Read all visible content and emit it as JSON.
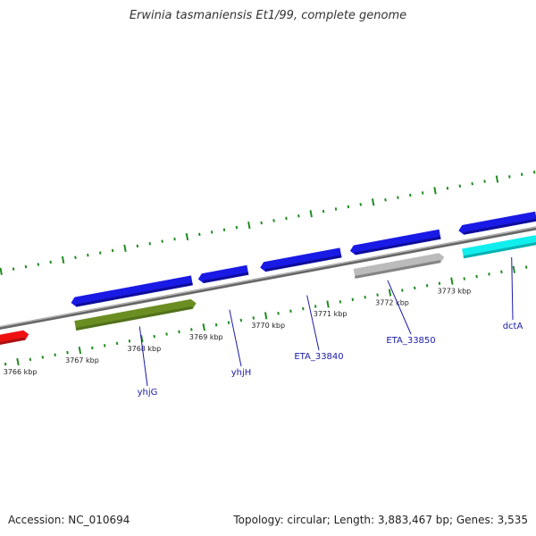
{
  "title": "Erwinia tasmaniensis Et1/99, complete genome",
  "footer": {
    "accession": "Accession: NC_010694",
    "summary": "Topology: circular; Length: 3,883,467 bp; Genes: 3,535"
  },
  "colors": {
    "backbone": "#888888",
    "tick": "#228b22",
    "gene_blue": "#1a1ae6",
    "gene_red": "#ee1111",
    "gene_olive": "#6b8e23",
    "gene_grey": "#bbbbbb",
    "gene_cyan": "#11eeee",
    "label": "#1a1aaa"
  },
  "scale": {
    "ticks": [
      {
        "kbp": 3766,
        "label": "3766 kbp"
      },
      {
        "kbp": 3767,
        "label": "3767 kbp"
      },
      {
        "kbp": 3768,
        "label": "3768 kbp"
      },
      {
        "kbp": 3769,
        "label": "3769 kbp"
      },
      {
        "kbp": 3770,
        "label": "3770 kbp"
      },
      {
        "kbp": 3771,
        "label": "3771 kbp"
      },
      {
        "kbp": 3772,
        "label": "3772 kbp"
      },
      {
        "kbp": 3773,
        "label": "3773 kbp"
      }
    ]
  },
  "genes": [
    {
      "track": "inner",
      "color": "red",
      "start": 3765.15,
      "end": 3766.25,
      "strand": "+"
    },
    {
      "track": "outer",
      "color": "blue",
      "start": 3767.0,
      "end": 3768.95,
      "strand": "-"
    },
    {
      "track": "inner",
      "color": "olive",
      "start": 3767.0,
      "end": 3768.95,
      "strand": "+"
    },
    {
      "track": "outer",
      "color": "blue",
      "start": 3769.05,
      "end": 3769.85,
      "strand": "-"
    },
    {
      "track": "outer",
      "color": "blue",
      "start": 3770.05,
      "end": 3771.35,
      "strand": "-"
    },
    {
      "track": "outer",
      "color": "blue",
      "start": 3771.5,
      "end": 3772.95,
      "strand": "-"
    },
    {
      "track": "inner",
      "color": "grey",
      "start": 3771.5,
      "end": 3772.95,
      "strand": "+"
    },
    {
      "track": "outer",
      "color": "blue",
      "start": 3773.25,
      "end": 3774.5,
      "strand": "-"
    },
    {
      "track": "inner",
      "color": "cyan",
      "start": 3773.25,
      "end": 3774.5,
      "strand": "+"
    }
  ],
  "gene_labels": [
    {
      "name": "yhjG",
      "kbp": 3768.0
    },
    {
      "name": "yhjH",
      "kbp": 3769.45
    },
    {
      "name": "ETA_33840",
      "kbp": 3770.7
    },
    {
      "name": "ETA_33850",
      "kbp": 3772.0
    },
    {
      "name": "dctA",
      "kbp": 3774.0
    }
  ]
}
